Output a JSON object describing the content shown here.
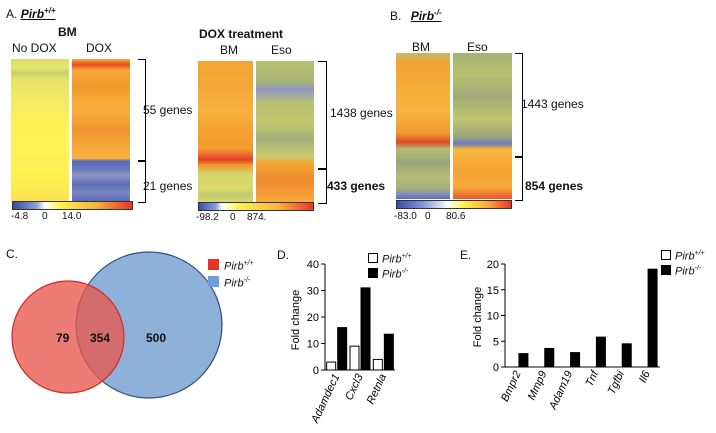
{
  "panelA": {
    "letter": "A.",
    "genotype": "Pirb",
    "genotype_sup": "+/+",
    "bm_title": "BM",
    "col_no_dox": "No DOX",
    "col_dox": "DOX",
    "top_label": "55 genes",
    "bottom_label": "21 genes",
    "scale_min": "-4.8",
    "scale_mid": "0",
    "scale_max": "14.0",
    "dox_title": "DOX treatment",
    "dox_col_bm": "BM",
    "dox_col_eso": "Eso",
    "dox_top_label": "1438 genes",
    "dox_bottom_label": "433 genes",
    "dox_scale_min": "-98.2",
    "dox_scale_mid": "0",
    "dox_scale_max": "874."
  },
  "panelB": {
    "letter": "B.",
    "genotype": "Pirb",
    "genotype_sup": "-/-",
    "col_bm": "BM",
    "col_eso": "Eso",
    "top_label": "1443 genes",
    "bottom_label": "854 genes",
    "scale_min": "-83.0",
    "scale_mid": "0",
    "scale_max": "80.6"
  },
  "panelC": {
    "letter": "C.",
    "left_only": "79",
    "overlap": "354",
    "right_only": "500",
    "legend": [
      {
        "name": "Pirb",
        "sup": "+/+",
        "color": "#e64a45"
      },
      {
        "name": "Pirb",
        "sup": "-/-",
        "color": "#6f9fd6"
      }
    ]
  },
  "panelD": {
    "letter": "D.",
    "chart_data": {
      "type": "bar",
      "categories": [
        "Adamdec1",
        "Cxcl3",
        "Retnla"
      ],
      "series": [
        {
          "name": "Pirb+/+",
          "values": [
            3,
            9,
            4
          ]
        },
        {
          "name": "Pirb-/-",
          "values": [
            16,
            31,
            13.5
          ]
        }
      ],
      "ylabel": "Fold change",
      "ylim": [
        0,
        40
      ],
      "yticks": [
        "0",
        "10",
        "20",
        "30",
        "40"
      ],
      "legend": [
        {
          "name": "Pirb",
          "sup": "+/+",
          "color": "#ffffff"
        },
        {
          "name": "Pirb",
          "sup": "-/-",
          "color": "#000000"
        }
      ]
    }
  },
  "panelE": {
    "letter": "E.",
    "chart_data": {
      "type": "bar",
      "categories": [
        "Bmpr2",
        "Mmp9",
        "Adam19",
        "Tnf",
        "Tgfbi",
        "Il6"
      ],
      "series": [
        {
          "name": "Pirb+/+",
          "values": [
            0,
            0,
            0,
            0,
            0,
            0
          ]
        },
        {
          "name": "Pirb-/-",
          "values": [
            2.6,
            3.6,
            2.8,
            5.8,
            4.5,
            19
          ]
        }
      ],
      "ylabel": "Fold change",
      "ylim": [
        0,
        20
      ],
      "yticks": [
        "0",
        "5",
        "10",
        "15",
        "20"
      ],
      "legend": [
        {
          "name": "Pirb",
          "sup": "+/+",
          "color": "#ffffff"
        },
        {
          "name": "Pirb",
          "sup": "-/-",
          "color": "#000000"
        }
      ]
    }
  }
}
